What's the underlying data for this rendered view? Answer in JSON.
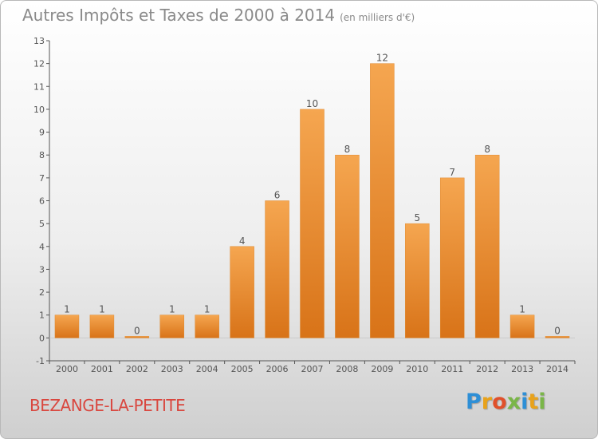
{
  "header": {
    "title": "Autres Impôts et Taxes de 2000 à 2014",
    "unit": "(en milliers d'€)"
  },
  "footer": {
    "commune": "BEZANGE-LA-PETITE",
    "logo_letters": [
      "P",
      "r",
      "o",
      "x",
      "i",
      "t",
      "i"
    ],
    "logo_colors": [
      "#2e8fd6",
      "#e8a21b",
      "#e0502b",
      "#7ab648",
      "#2e8fd6",
      "#e8a21b",
      "#7ab648"
    ]
  },
  "colors": {
    "bar_light": "#f5a650",
    "bar_dark": "#d87318",
    "axis": "#555555",
    "grid": "#d0d0d0",
    "text": "#555555"
  },
  "chart_data": {
    "type": "bar",
    "title": "Autres Impôts et Taxes de 2000 à 2014",
    "xlabel": "",
    "ylabel": "",
    "categories": [
      "2000",
      "2001",
      "2002",
      "2003",
      "2004",
      "2005",
      "2006",
      "2007",
      "2008",
      "2009",
      "2010",
      "2011",
      "2012",
      "2013",
      "2014"
    ],
    "values": [
      1,
      1,
      0,
      1,
      1,
      4,
      6,
      10,
      8,
      12,
      5,
      7,
      8,
      1,
      0
    ],
    "data_labels": [
      "1",
      "1",
      "0",
      "1",
      "1",
      "4",
      "6",
      "10",
      "8",
      "12",
      "5",
      "7",
      "8",
      "1",
      "0"
    ],
    "yticks": [
      "-1",
      "0",
      "1",
      "2",
      "3",
      "4",
      "5",
      "6",
      "7",
      "8",
      "9",
      "10",
      "11",
      "12",
      "13"
    ],
    "ylim": [
      -1,
      13
    ],
    "grid": false
  }
}
